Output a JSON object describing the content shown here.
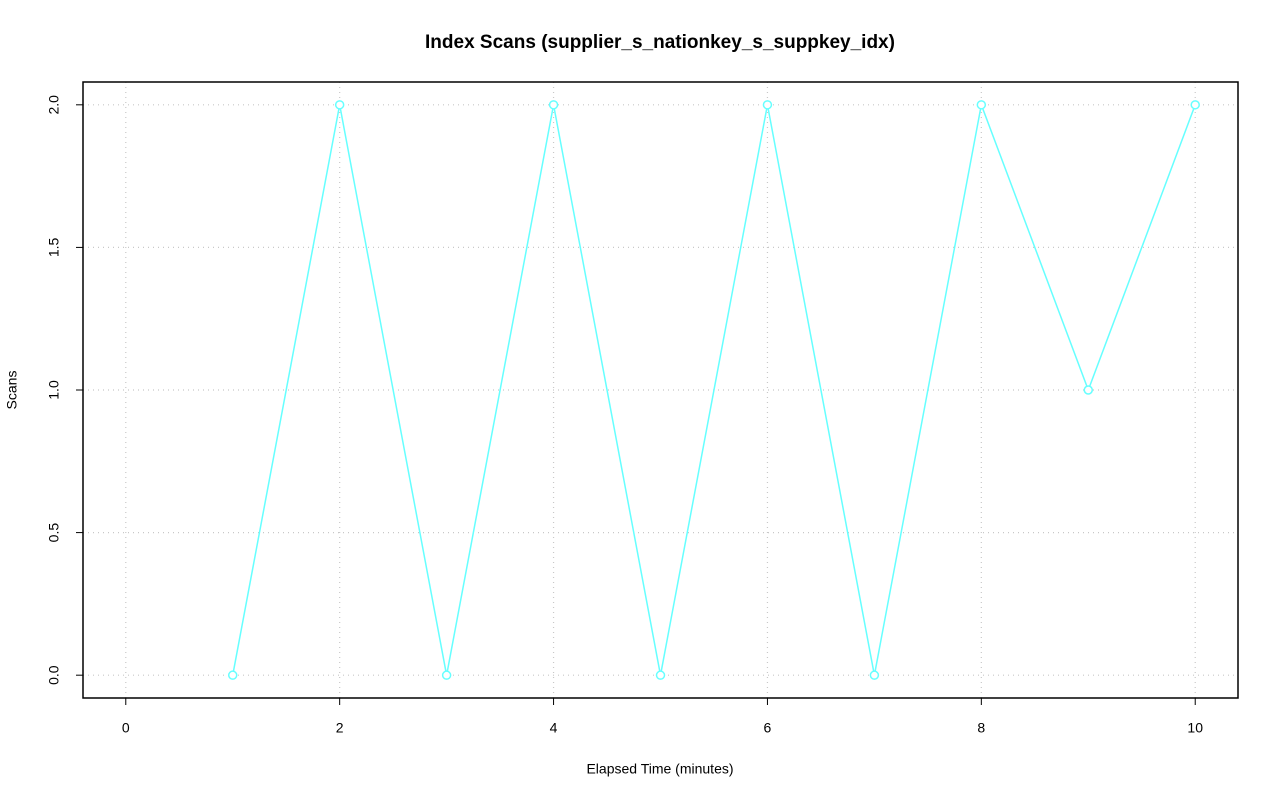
{
  "chart_data": {
    "type": "line",
    "title": "Index Scans (supplier_s_nationkey_s_suppkey_idx)",
    "x_label": "Elapsed Time (minutes)",
    "y_label": "Scans",
    "x": [
      1,
      2,
      3,
      4,
      5,
      6,
      7,
      8,
      9,
      10
    ],
    "values": [
      0,
      2,
      0,
      2,
      0,
      2,
      0,
      2,
      1,
      2
    ],
    "color": "#66ffff",
    "xlim": [
      -0.4,
      10.4
    ],
    "xticks": [
      0,
      2,
      4,
      6,
      8,
      10
    ],
    "ylim": [
      -0.08,
      2.08
    ],
    "yticks": [
      {
        "value": 0,
        "label": "0.0"
      },
      {
        "value": 0.5,
        "label": "0.5"
      },
      {
        "value": 1,
        "label": "1.0"
      },
      {
        "value": 1.5,
        "label": "1.5"
      },
      {
        "value": 2,
        "label": "2.0"
      }
    ],
    "grid": true
  }
}
